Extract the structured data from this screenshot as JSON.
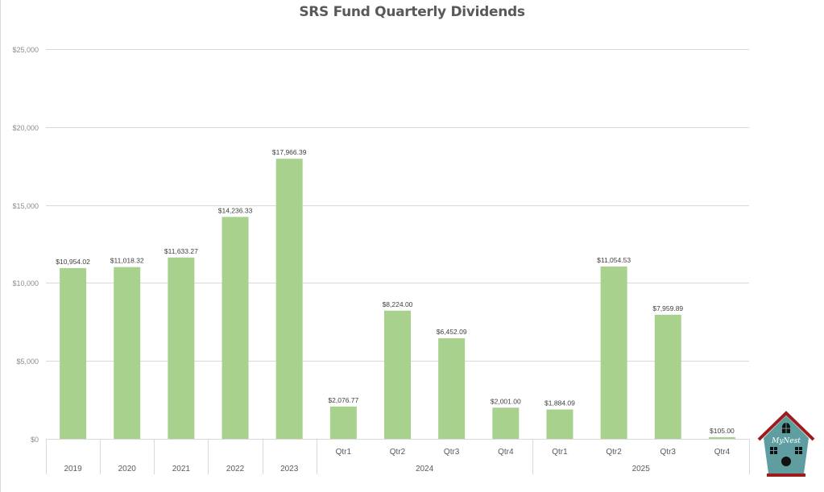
{
  "chart_data": {
    "type": "bar",
    "title": "SRS Fund Quarterly Dividends",
    "xlabel": "",
    "ylabel": "",
    "ylim": [
      0,
      25000
    ],
    "yticks": [
      0,
      5000,
      10000,
      15000,
      20000,
      25000
    ],
    "ytick_labels": [
      "$0",
      "$5,000",
      "$10,000",
      "$15,000",
      "$20,000",
      "$25,000"
    ],
    "grid": true,
    "legend": "none",
    "bar_color": "#a9d18e",
    "categories": [
      {
        "label": "2019",
        "group": ""
      },
      {
        "label": "2020",
        "group": ""
      },
      {
        "label": "2021",
        "group": ""
      },
      {
        "label": "2022",
        "group": ""
      },
      {
        "label": "2023",
        "group": ""
      },
      {
        "label": "Qtr1",
        "group": "2024"
      },
      {
        "label": "Qtr2",
        "group": "2024"
      },
      {
        "label": "Qtr3",
        "group": "2024"
      },
      {
        "label": "Qtr4",
        "group": "2024"
      },
      {
        "label": "Qtr1",
        "group": "2025"
      },
      {
        "label": "Qtr2",
        "group": "2025"
      },
      {
        "label": "Qtr3",
        "group": "2025"
      },
      {
        "label": "Qtr4",
        "group": "2025"
      }
    ],
    "groups": [
      "2024",
      "2025"
    ],
    "values": [
      10954.02,
      11018.32,
      11633.27,
      14236.33,
      17966.39,
      2076.77,
      8224.0,
      6452.09,
      2001.0,
      1884.09,
      11054.53,
      7959.89,
      105.0
    ],
    "data_labels": [
      "$10,954.02",
      "$11,018.32",
      "$11,633.27",
      "$14,236.33",
      "$17,966.39",
      "$2,076.77",
      "$8,224.00",
      "$6,452.09",
      "$2,001.00",
      "$1,884.09",
      "$11,054.53",
      "$7,959.89",
      "$105.00"
    ]
  },
  "logo": {
    "text": "MyNest",
    "icon": "birdhouse-icon",
    "roof_color": "#9c1c1c",
    "body_color": "#5f9ea0"
  }
}
